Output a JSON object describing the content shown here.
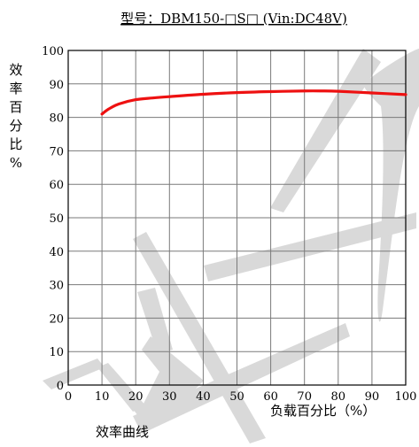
{
  "chart_data": {
    "type": "line",
    "title": "型号：DBM150-□S□  (Vin:DC48V)",
    "caption": "效率曲线",
    "xlabel": "负载百分比（%）",
    "ylabel": "效率百分比%",
    "xlim": [
      0,
      100
    ],
    "ylim": [
      0,
      100
    ],
    "xticks": [
      0,
      10,
      20,
      30,
      40,
      50,
      60,
      70,
      80,
      90,
      100
    ],
    "yticks": [
      0,
      10,
      20,
      30,
      40,
      50,
      60,
      70,
      80,
      90,
      100
    ],
    "grid": true,
    "series": [
      {
        "color": "#ee1111",
        "x": [
          10,
          12,
          15,
          20,
          25,
          30,
          40,
          50,
          60,
          70,
          75,
          80,
          90,
          100
        ],
        "y": [
          81,
          82.5,
          84,
          85.3,
          85.8,
          86.2,
          86.9,
          87.4,
          87.7,
          87.9,
          87.9,
          87.8,
          87.3,
          86.8
        ]
      }
    ],
    "watermark_color": "#d9d9d9"
  }
}
